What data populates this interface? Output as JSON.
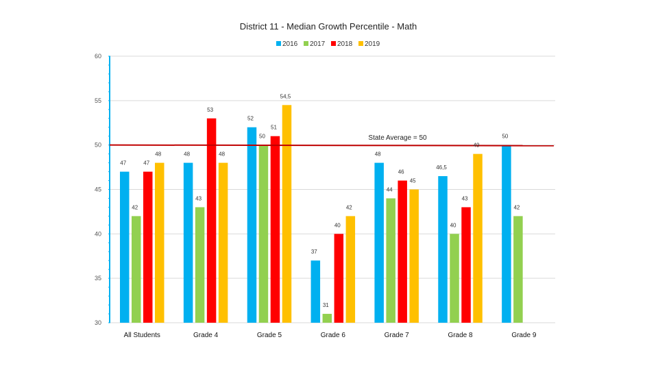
{
  "chart_data": {
    "type": "bar",
    "title": "District 11 - Median Growth Percentile - Math",
    "categories": [
      "All Students",
      "Grade 4",
      "Grade 5",
      "Grade 6",
      "Grade 7",
      "Grade 8",
      "Grade 9"
    ],
    "series": [
      {
        "name": "2016",
        "color": "#00b0f0",
        "values": [
          47,
          48,
          52,
          37,
          48,
          46.5,
          50
        ],
        "labels": [
          "47",
          "48",
          "52",
          "37",
          "48",
          "46,5",
          "50"
        ]
      },
      {
        "name": "2017",
        "color": "#92d050",
        "values": [
          42,
          43,
          50,
          31,
          44,
          40,
          42
        ],
        "labels": [
          "42",
          "43",
          "50",
          "31",
          "44",
          "40",
          "42"
        ]
      },
      {
        "name": "2018",
        "color": "#ff0000",
        "values": [
          47,
          53,
          51,
          40,
          46,
          43,
          null
        ],
        "labels": [
          "47",
          "53",
          "51",
          "40",
          "46",
          "43",
          null
        ]
      },
      {
        "name": "2019",
        "color": "#ffc000",
        "values": [
          48,
          48,
          54.5,
          42,
          45,
          49,
          null
        ],
        "labels": [
          "48",
          "48",
          "54,5",
          "42",
          "45",
          "49",
          null
        ]
      }
    ],
    "ylim": [
      30,
      60
    ],
    "yticks": [
      "30",
      "35",
      "40",
      "45",
      "50",
      "55",
      "60"
    ],
    "reference_line": {
      "value": 50,
      "label": "State Average = 50",
      "color": "#c00000"
    },
    "grid": true,
    "legend_position": "top-center",
    "xlabel": "",
    "ylabel": ""
  }
}
